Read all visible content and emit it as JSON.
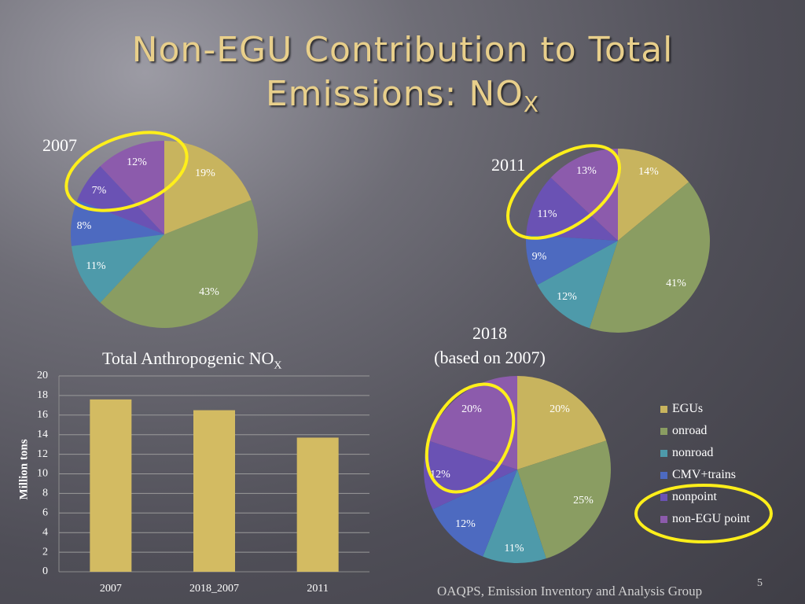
{
  "slide": {
    "title_line1": "Non-EGU Contribution to Total",
    "title_line2": "Emissions: NO",
    "title_sub": "X",
    "footer": "OAQPS, Emission Inventory and Analysis Group",
    "page_number": "5"
  },
  "labels": {
    "pie_2007": "2007",
    "pie_2011": "2011",
    "pie_2018_line1": "2018",
    "pie_2018_line2": "(based on 2007)",
    "bar_title": "Total Anthropogenic NO",
    "bar_title_sub": "X"
  },
  "colors": {
    "EGUs": "#c8b45e",
    "onroad": "#8a9d62",
    "nonroad": "#4e9aaa",
    "CMV+trains": "#4d6ac0",
    "nonpoint": "#6a52b4",
    "non-EGU point": "#8c5bac",
    "bar": "#d3bb62",
    "highlight": "#ffef1a"
  },
  "chart_data": [
    {
      "type": "pie",
      "title": "2007",
      "categories": [
        "EGUs",
        "onroad",
        "nonroad",
        "CMV+trains",
        "nonpoint",
        "non-EGU point"
      ],
      "values": [
        19,
        43,
        11,
        8,
        7,
        12
      ],
      "data_labels": [
        "19%",
        "43%",
        "11%",
        "8%",
        "7%",
        "12%"
      ],
      "highlighted": [
        "nonpoint",
        "non-EGU point"
      ]
    },
    {
      "type": "pie",
      "title": "2011",
      "categories": [
        "EGUs",
        "onroad",
        "nonroad",
        "CMV+trains",
        "nonpoint",
        "non-EGU point"
      ],
      "values": [
        14,
        41,
        12,
        9,
        11,
        13
      ],
      "data_labels": [
        "14%",
        "41%",
        "12%",
        "9%",
        "11%",
        "13%"
      ],
      "highlighted": [
        "nonpoint",
        "non-EGU point"
      ]
    },
    {
      "type": "pie",
      "title": "2018 (based on 2007)",
      "categories": [
        "EGUs",
        "onroad",
        "nonroad",
        "CMV+trains",
        "nonpoint",
        "non-EGU point"
      ],
      "values": [
        20,
        25,
        11,
        12,
        12,
        20
      ],
      "data_labels": [
        "20%",
        "25%",
        "11%",
        "12%",
        "12%",
        "20%"
      ],
      "highlighted": [
        "nonpoint",
        "non-EGU point"
      ],
      "legend": [
        "EGUs",
        "onroad",
        "nonroad",
        "CMV+trains",
        "nonpoint",
        "non-EGU point"
      ],
      "legend_placement": "right",
      "legend_highlighted": [
        "nonpoint",
        "non-EGU point"
      ]
    },
    {
      "type": "bar",
      "title": "Total Anthropogenic NOX",
      "categories": [
        "2007",
        "2018_2007",
        "2011"
      ],
      "values": [
        17.6,
        16.5,
        13.7
      ],
      "xlabel": "",
      "ylabel": "Million tons",
      "ylim": [
        0,
        20
      ],
      "yticks": [
        0,
        2,
        4,
        6,
        8,
        10,
        12,
        14,
        16,
        18,
        20
      ],
      "grid": true
    }
  ]
}
